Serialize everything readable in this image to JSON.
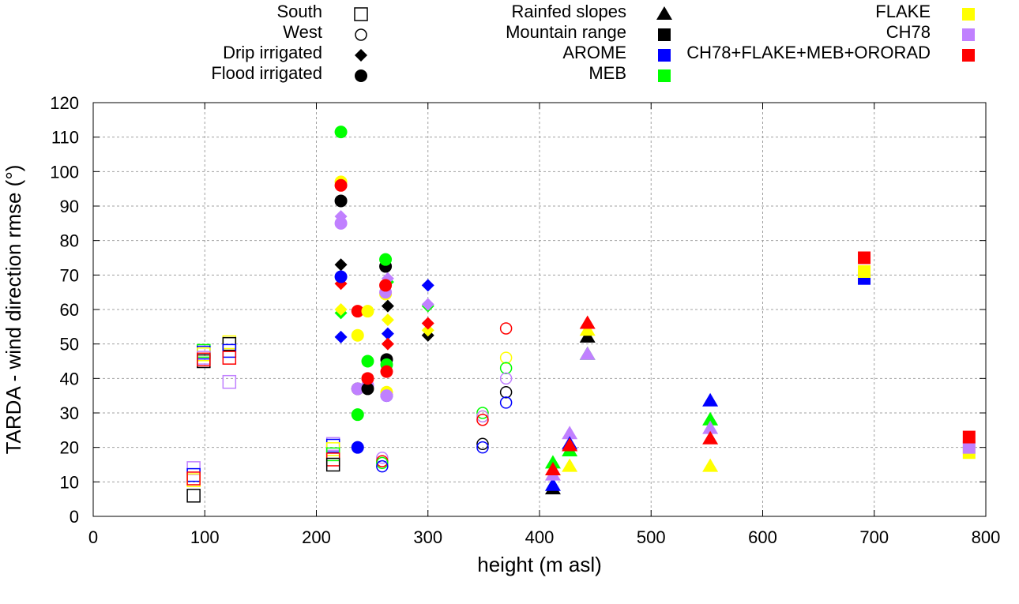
{
  "chart_data": {
    "type": "scatter",
    "xlabel": "height (m asl)",
    "ylabel": "TARDA - wind direction rmse (°)",
    "xlim": [
      0,
      800
    ],
    "ylim": [
      0,
      120
    ],
    "xticks": [
      0,
      100,
      200,
      300,
      400,
      500,
      600,
      700,
      800
    ],
    "yticks": [
      0,
      10,
      20,
      30,
      40,
      50,
      60,
      70,
      80,
      90,
      100,
      110,
      120
    ],
    "grid": true,
    "legend_placement": "top (outside plot)",
    "models": [
      {
        "key": "default",
        "name": "",
        "color": "#000000"
      },
      {
        "key": "AROME",
        "name": "AROME",
        "color": "#0000ff"
      },
      {
        "key": "MEB",
        "name": "MEB",
        "color": "#00ff00"
      },
      {
        "key": "FLAKE",
        "name": "FLAKE",
        "color": "#ffff00"
      },
      {
        "key": "CH78",
        "name": "CH78",
        "color": "#c080ff"
      },
      {
        "key": "CH78+FLAKE+MEB+ORORAD",
        "name": "CH78+FLAKE+MEB+ORORAD",
        "color": "#ff0000"
      }
    ],
    "series": [
      {
        "name": "South",
        "marker": "open-square",
        "points": [
          [
            90,
            14,
            "CH78"
          ],
          [
            90,
            12,
            "AROME"
          ],
          [
            90,
            10.5,
            "FLAKE"
          ],
          [
            90,
            11,
            "CH78+FLAKE+MEB+ORORAD"
          ],
          [
            90,
            6,
            "default"
          ],
          [
            99,
            48,
            "MEB"
          ],
          [
            99,
            47.5,
            "AROME"
          ],
          [
            99,
            47,
            "FLAKE"
          ],
          [
            99,
            46,
            "CH78"
          ],
          [
            99,
            45,
            "default"
          ],
          [
            99,
            45.5,
            "CH78+FLAKE+MEB+ORORAD"
          ],
          [
            122,
            50.5,
            "FLAKE"
          ],
          [
            122,
            50,
            "default"
          ],
          [
            122,
            48,
            "AROME"
          ],
          [
            122,
            46,
            "CH78+FLAKE+MEB+ORORAD"
          ],
          [
            122,
            39,
            "CH78"
          ],
          [
            215,
            21,
            "CH78"
          ],
          [
            215,
            20.5,
            "AROME"
          ],
          [
            215,
            19.5,
            "FLAKE"
          ],
          [
            215,
            18,
            "MEB"
          ],
          [
            215,
            16.5,
            "CH78+FLAKE+MEB+ORORAD"
          ],
          [
            215,
            15,
            "default"
          ]
        ]
      },
      {
        "name": "West",
        "marker": "open-circle",
        "points": [
          [
            259,
            17,
            "CH78"
          ],
          [
            259,
            16,
            "CH78+FLAKE+MEB+ORORAD"
          ],
          [
            259,
            15.5,
            "MEB"
          ],
          [
            259,
            14.5,
            "AROME"
          ],
          [
            349,
            30,
            "MEB"
          ],
          [
            349,
            29,
            "FLAKE"
          ],
          [
            349,
            29,
            "CH78"
          ],
          [
            349,
            28,
            "CH78+FLAKE+MEB+ORORAD"
          ],
          [
            349,
            21,
            "default"
          ],
          [
            349,
            20,
            "AROME"
          ],
          [
            370,
            54.5,
            "CH78+FLAKE+MEB+ORORAD"
          ],
          [
            370,
            46,
            "FLAKE"
          ],
          [
            370,
            43,
            "MEB"
          ],
          [
            370,
            40,
            "CH78"
          ],
          [
            370,
            36,
            "default"
          ],
          [
            370,
            33,
            "AROME"
          ]
        ]
      },
      {
        "name": "Drip irrigated",
        "marker": "diamond",
        "points": [
          [
            222,
            87,
            "CH78"
          ],
          [
            222,
            73,
            "default"
          ],
          [
            222,
            67.5,
            "CH78+FLAKE+MEB+ORORAD"
          ],
          [
            222,
            59,
            "MEB"
          ],
          [
            222,
            60,
            "FLAKE"
          ],
          [
            222,
            52,
            "AROME"
          ],
          [
            264,
            68,
            "MEB"
          ],
          [
            264,
            69,
            "CH78"
          ],
          [
            264,
            61,
            "default"
          ],
          [
            264,
            57,
            "FLAKE"
          ],
          [
            264,
            53,
            "AROME"
          ],
          [
            264,
            50,
            "CH78+FLAKE+MEB+ORORAD"
          ],
          [
            300,
            67,
            "AROME"
          ],
          [
            300,
            61,
            "MEB"
          ],
          [
            300,
            61.5,
            "CH78"
          ],
          [
            300,
            52.5,
            "default"
          ],
          [
            300,
            54,
            "FLAKE"
          ],
          [
            300,
            56,
            "CH78+FLAKE+MEB+ORORAD"
          ]
        ]
      },
      {
        "name": "Flood irrigated",
        "marker": "filled-circle",
        "points": [
          [
            222,
            111.5,
            "MEB"
          ],
          [
            222,
            97,
            "FLAKE"
          ],
          [
            222,
            96,
            "CH78+FLAKE+MEB+ORORAD"
          ],
          [
            222,
            91.5,
            "default"
          ],
          [
            222,
            85,
            "CH78"
          ],
          [
            222,
            69.5,
            "AROME"
          ],
          [
            237,
            59.5,
            "CH78+FLAKE+MEB+ORORAD"
          ],
          [
            237,
            52.5,
            "FLAKE"
          ],
          [
            237,
            37,
            "default"
          ],
          [
            237,
            37,
            "CH78"
          ],
          [
            237,
            29.5,
            "MEB"
          ],
          [
            237,
            20,
            "AROME"
          ],
          [
            246,
            59.5,
            "FLAKE"
          ],
          [
            246,
            45,
            "MEB"
          ],
          [
            246,
            38,
            "CH78"
          ],
          [
            246,
            37,
            "default"
          ],
          [
            246,
            40,
            "CH78+FLAKE+MEB+ORORAD"
          ],
          [
            262,
            72.5,
            "default"
          ],
          [
            262,
            74.5,
            "MEB"
          ],
          [
            262,
            64.5,
            "FLAKE"
          ],
          [
            262,
            65,
            "CH78"
          ],
          [
            262,
            67,
            "CH78+FLAKE+MEB+ORORAD"
          ],
          [
            263,
            45.5,
            "default"
          ],
          [
            263,
            44,
            "MEB"
          ],
          [
            263,
            42,
            "CH78+FLAKE+MEB+ORORAD"
          ],
          [
            263,
            35,
            "AROME"
          ],
          [
            263,
            36,
            "FLAKE"
          ],
          [
            263,
            35,
            "CH78"
          ]
        ]
      },
      {
        "name": "Rainfed slopes",
        "marker": "triangle",
        "points": [
          [
            412,
            8,
            "default"
          ],
          [
            412,
            9,
            "AROME"
          ],
          [
            412,
            15.5,
            "MEB"
          ],
          [
            412,
            12,
            "CH78"
          ],
          [
            412,
            13.5,
            "CH78+FLAKE+MEB+ORORAD"
          ],
          [
            427,
            14.5,
            "FLAKE"
          ],
          [
            427,
            24,
            "CH78"
          ],
          [
            427,
            21,
            "AROME"
          ],
          [
            427,
            19,
            "MEB"
          ],
          [
            427,
            20.5,
            "CH78+FLAKE+MEB+ORORAD"
          ],
          [
            443,
            52,
            "default"
          ],
          [
            443,
            54,
            "FLAKE"
          ],
          [
            443,
            56,
            "CH78+FLAKE+MEB+ORORAD"
          ],
          [
            443,
            47,
            "MEB"
          ],
          [
            443,
            47,
            "CH78"
          ],
          [
            553,
            33.5,
            "AROME"
          ],
          [
            553,
            28,
            "MEB"
          ],
          [
            553,
            25.5,
            "CH78"
          ],
          [
            553,
            22.5,
            "CH78+FLAKE+MEB+ORORAD"
          ],
          [
            553,
            14.5,
            "FLAKE"
          ]
        ]
      },
      {
        "name": "Mountain range",
        "marker": "filled-square",
        "points": [
          [
            691,
            69,
            "AROME"
          ],
          [
            691,
            71,
            "FLAKE"
          ],
          [
            691,
            75,
            "CH78+FLAKE+MEB+ORORAD"
          ],
          [
            785,
            18.5,
            "FLAKE"
          ],
          [
            785,
            20,
            "CH78"
          ],
          [
            785,
            23,
            "CH78+FLAKE+MEB+ORORAD"
          ]
        ]
      }
    ]
  }
}
